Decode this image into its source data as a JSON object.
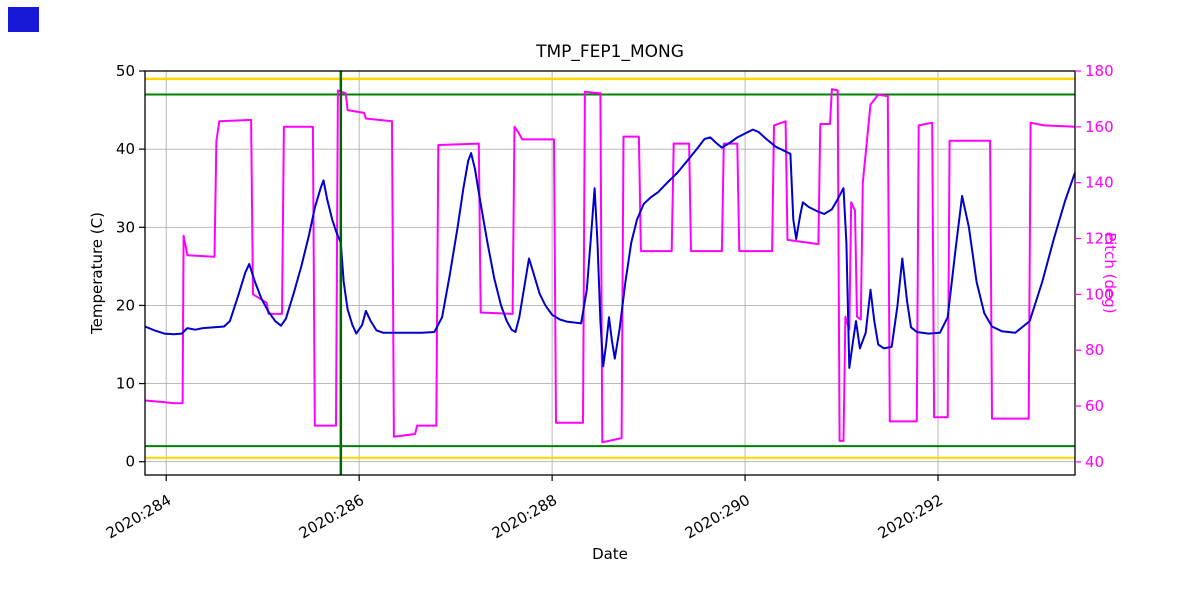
{
  "chart_data": {
    "type": "line",
    "title": "TMP_FEP1_MONG",
    "xlabel": "Date",
    "ylabel_left": "Temperature (C)",
    "ylabel_right": "Pitch (deg)",
    "grid": true,
    "colors": {
      "temperature_line": "#0000cd",
      "pitch_line": "#ff00ff",
      "limit_gold": "#ffd700",
      "limit_green": "#008000",
      "marker_vertical_green": "#006400",
      "grid_line": "#b0b0b0",
      "spine": "#000000",
      "right_axis": "#ff00ff",
      "corner_marker_blue": "#1717d6"
    },
    "xlim": [
      283.78,
      293.42
    ],
    "ylim_left": [
      -1.7,
      50
    ],
    "ylim_right": [
      35.3,
      180
    ],
    "x_tick_positions": [
      284,
      286,
      288,
      290,
      292
    ],
    "x_tick_labels": [
      "2020:284",
      "2020:286",
      "2020:288",
      "2020:290",
      "2020:292"
    ],
    "y_ticks_left": [
      0,
      10,
      20,
      30,
      40,
      50
    ],
    "y_ticks_right": [
      40,
      60,
      80,
      100,
      120,
      140,
      160,
      180
    ],
    "limit_lines": [
      {
        "name": "upper-warning-gold",
        "orientation": "horizontal",
        "axis": "left",
        "value": 49,
        "color": "#ffd700",
        "width": 2.5
      },
      {
        "name": "upper-caution-green",
        "orientation": "horizontal",
        "axis": "left",
        "value": 47,
        "color": "#008000",
        "width": 2
      },
      {
        "name": "lower-caution-green",
        "orientation": "horizontal",
        "axis": "left",
        "value": 2,
        "color": "#008000",
        "width": 2
      },
      {
        "name": "lower-warning-gold",
        "orientation": "horizontal",
        "axis": "left",
        "value": 0.5,
        "color": "#ffd700",
        "width": 2
      },
      {
        "name": "event-marker-green",
        "orientation": "vertical",
        "value": 285.81,
        "color": "#006400",
        "width": 2.5
      }
    ],
    "series": [
      {
        "name": "temperature",
        "axis": "left",
        "color": "#0000cd",
        "width": 2,
        "points": [
          [
            283.78,
            17.3
          ],
          [
            283.88,
            16.8
          ],
          [
            283.98,
            16.4
          ],
          [
            284.08,
            16.3
          ],
          [
            284.16,
            16.4
          ],
          [
            284.22,
            17.1
          ],
          [
            284.3,
            16.9
          ],
          [
            284.38,
            17.1
          ],
          [
            284.5,
            17.2
          ],
          [
            284.6,
            17.3
          ],
          [
            284.66,
            18
          ],
          [
            284.74,
            21
          ],
          [
            284.82,
            24.2
          ],
          [
            284.86,
            25.3
          ],
          [
            284.92,
            23
          ],
          [
            284.99,
            20.8
          ],
          [
            285.06,
            19.2
          ],
          [
            285.13,
            18
          ],
          [
            285.19,
            17.4
          ],
          [
            285.24,
            18.3
          ],
          [
            285.32,
            21.5
          ],
          [
            285.4,
            25
          ],
          [
            285.48,
            29
          ],
          [
            285.54,
            32.5
          ],
          [
            285.6,
            35
          ],
          [
            285.63,
            36
          ],
          [
            285.67,
            33.5
          ],
          [
            285.72,
            31
          ],
          [
            285.76,
            29.5
          ],
          [
            285.81,
            28
          ],
          [
            285.84,
            23
          ],
          [
            285.88,
            19.5
          ],
          [
            285.93,
            17.5
          ],
          [
            285.97,
            16.4
          ],
          [
            286.03,
            17.5
          ],
          [
            286.07,
            19.3
          ],
          [
            286.12,
            18
          ],
          [
            286.18,
            16.8
          ],
          [
            286.25,
            16.5
          ],
          [
            286.45,
            16.5
          ],
          [
            286.65,
            16.5
          ],
          [
            286.78,
            16.6
          ],
          [
            286.86,
            18.5
          ],
          [
            286.94,
            24
          ],
          [
            287.02,
            30
          ],
          [
            287.08,
            35
          ],
          [
            287.13,
            38.5
          ],
          [
            287.16,
            39.5
          ],
          [
            287.2,
            37.5
          ],
          [
            287.26,
            33
          ],
          [
            287.33,
            28
          ],
          [
            287.4,
            23.5
          ],
          [
            287.47,
            20
          ],
          [
            287.53,
            18
          ],
          [
            287.58,
            16.9
          ],
          [
            287.62,
            16.6
          ],
          [
            287.66,
            18.5
          ],
          [
            287.72,
            23
          ],
          [
            287.76,
            26
          ],
          [
            287.81,
            24
          ],
          [
            287.87,
            21.5
          ],
          [
            287.93,
            20
          ],
          [
            288,
            18.8
          ],
          [
            288.08,
            18.2
          ],
          [
            288.16,
            17.9
          ],
          [
            288.24,
            17.8
          ],
          [
            288.3,
            17.7
          ],
          [
            288.36,
            22
          ],
          [
            288.41,
            30
          ],
          [
            288.44,
            35
          ],
          [
            288.47,
            28
          ],
          [
            288.5,
            18
          ],
          [
            288.53,
            12.2
          ],
          [
            288.56,
            15
          ],
          [
            288.59,
            18.5
          ],
          [
            288.62,
            15.5
          ],
          [
            288.65,
            13.2
          ],
          [
            288.7,
            17
          ],
          [
            288.76,
            23
          ],
          [
            288.82,
            28
          ],
          [
            288.88,
            31
          ],
          [
            288.95,
            33
          ],
          [
            289.02,
            33.8
          ],
          [
            289.1,
            34.5
          ],
          [
            289.2,
            35.8
          ],
          [
            289.3,
            37
          ],
          [
            289.4,
            38.5
          ],
          [
            289.5,
            40
          ],
          [
            289.58,
            41.3
          ],
          [
            289.64,
            41.5
          ],
          [
            289.7,
            40.8
          ],
          [
            289.76,
            40.2
          ],
          [
            289.84,
            40.8
          ],
          [
            289.92,
            41.5
          ],
          [
            290,
            42
          ],
          [
            290.08,
            42.5
          ],
          [
            290.14,
            42.2
          ],
          [
            290.22,
            41.3
          ],
          [
            290.32,
            40.3
          ],
          [
            290.42,
            39.7
          ],
          [
            290.47,
            39.4
          ],
          [
            290.5,
            31
          ],
          [
            290.53,
            28.5
          ],
          [
            290.57,
            31.5
          ],
          [
            290.6,
            33.2
          ],
          [
            290.66,
            32.6
          ],
          [
            290.74,
            32.1
          ],
          [
            290.82,
            31.7
          ],
          [
            290.9,
            32.3
          ],
          [
            290.96,
            33.6
          ],
          [
            291.02,
            35
          ],
          [
            291.05,
            28
          ],
          [
            291.08,
            12
          ],
          [
            291.12,
            15.5
          ],
          [
            291.15,
            18
          ],
          [
            291.19,
            14.5
          ],
          [
            291.25,
            16.5
          ],
          [
            291.3,
            22
          ],
          [
            291.34,
            18
          ],
          [
            291.38,
            15
          ],
          [
            291.44,
            14.5
          ],
          [
            291.52,
            14.7
          ],
          [
            291.58,
            20
          ],
          [
            291.63,
            26
          ],
          [
            291.68,
            20.5
          ],
          [
            291.72,
            17.2
          ],
          [
            291.78,
            16.6
          ],
          [
            291.9,
            16.4
          ],
          [
            292.02,
            16.5
          ],
          [
            292.1,
            18.5
          ],
          [
            292.18,
            27
          ],
          [
            292.25,
            34
          ],
          [
            292.32,
            30
          ],
          [
            292.4,
            23
          ],
          [
            292.48,
            19
          ],
          [
            292.56,
            17.3
          ],
          [
            292.66,
            16.7
          ],
          [
            292.8,
            16.5
          ],
          [
            292.95,
            18
          ],
          [
            293.08,
            23
          ],
          [
            293.2,
            28.5
          ],
          [
            293.32,
            33.5
          ],
          [
            293.42,
            37
          ]
        ]
      },
      {
        "name": "pitch",
        "axis": "right",
        "color": "#ff00ff",
        "width": 2,
        "points": [
          [
            283.78,
            62
          ],
          [
            283.95,
            61.5
          ],
          [
            284.08,
            61
          ],
          [
            284.17,
            61
          ],
          [
            284.18,
            121
          ],
          [
            284.22,
            114
          ],
          [
            284.5,
            113.5
          ],
          [
            284.52,
            155
          ],
          [
            284.55,
            162
          ],
          [
            284.88,
            162.5
          ],
          [
            284.9,
            100
          ],
          [
            285.04,
            97
          ],
          [
            285.06,
            93
          ],
          [
            285.2,
            93
          ],
          [
            285.22,
            160
          ],
          [
            285.52,
            160
          ],
          [
            285.54,
            53
          ],
          [
            285.76,
            53
          ],
          [
            285.78,
            173
          ],
          [
            285.86,
            172
          ],
          [
            285.88,
            166
          ],
          [
            286.05,
            165
          ],
          [
            286.07,
            163
          ],
          [
            286.34,
            162
          ],
          [
            286.36,
            49
          ],
          [
            286.58,
            50
          ],
          [
            286.6,
            53
          ],
          [
            286.8,
            53
          ],
          [
            286.82,
            153.5
          ],
          [
            287.24,
            154
          ],
          [
            287.26,
            93.5
          ],
          [
            287.59,
            93
          ],
          [
            287.61,
            160
          ],
          [
            287.65,
            158
          ],
          [
            287.69,
            155.5
          ],
          [
            288.02,
            155.5
          ],
          [
            288.04,
            54
          ],
          [
            288.32,
            54
          ],
          [
            288.34,
            172.5
          ],
          [
            288.5,
            172
          ],
          [
            288.52,
            47
          ],
          [
            288.72,
            48.5
          ],
          [
            288.74,
            156.5
          ],
          [
            288.9,
            156.5
          ],
          [
            288.92,
            115.5
          ],
          [
            289.24,
            115.5
          ],
          [
            289.26,
            154
          ],
          [
            289.42,
            154
          ],
          [
            289.44,
            115.5
          ],
          [
            289.76,
            115.5
          ],
          [
            289.78,
            154
          ],
          [
            289.92,
            154
          ],
          [
            289.94,
            115.5
          ],
          [
            290.28,
            115.5
          ],
          [
            290.3,
            160.5
          ],
          [
            290.42,
            162
          ],
          [
            290.44,
            119.5
          ],
          [
            290.76,
            118
          ],
          [
            290.78,
            161
          ],
          [
            290.88,
            161
          ],
          [
            290.9,
            173.5
          ],
          [
            290.96,
            173
          ],
          [
            290.98,
            47.5
          ],
          [
            291.02,
            47.5
          ],
          [
            291.04,
            92
          ],
          [
            291.08,
            87.5
          ],
          [
            291.1,
            133
          ],
          [
            291.14,
            130
          ],
          [
            291.16,
            92
          ],
          [
            291.2,
            91
          ],
          [
            291.22,
            140
          ],
          [
            291.3,
            168
          ],
          [
            291.38,
            171.5
          ],
          [
            291.48,
            171
          ],
          [
            291.5,
            54.5
          ],
          [
            291.78,
            54.5
          ],
          [
            291.8,
            160.5
          ],
          [
            291.94,
            161.5
          ],
          [
            291.96,
            56
          ],
          [
            292.1,
            56
          ],
          [
            292.12,
            155
          ],
          [
            292.54,
            155
          ],
          [
            292.56,
            55.5
          ],
          [
            292.94,
            55.5
          ],
          [
            292.96,
            161.5
          ],
          [
            293.1,
            160.5
          ],
          [
            293.42,
            160
          ]
        ]
      }
    ]
  }
}
